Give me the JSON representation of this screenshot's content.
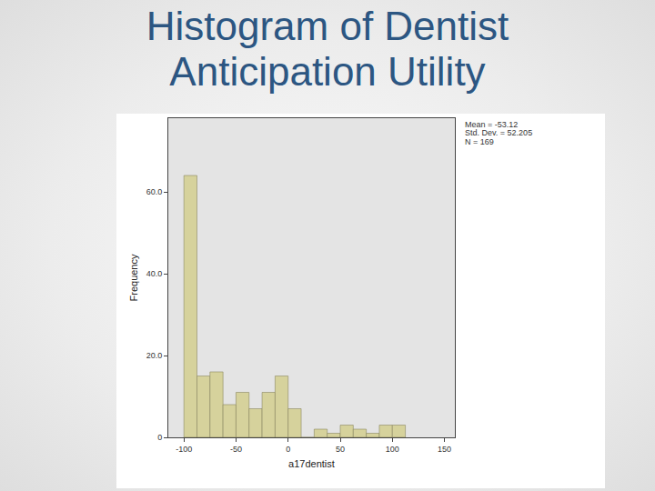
{
  "chart_data": {
    "type": "histogram",
    "title": "Histogram of Dentist Anticipation Utility",
    "x_label": "a17dentist",
    "y_label": "Frequency",
    "annotations": [
      "Mean = -53.12",
      "Std. Dev. = 52.205",
      "N = 169"
    ],
    "bins": [
      -100,
      -87.5,
      -75,
      -62.5,
      -50,
      -37.5,
      -25,
      -12.5,
      0,
      12.5,
      25,
      37.5,
      50,
      62.5,
      75,
      87.5,
      100,
      112.5
    ],
    "values": [
      64,
      15,
      16,
      8,
      11,
      7,
      11,
      15,
      7,
      0,
      2,
      1,
      3,
      2,
      1,
      3,
      3
    ],
    "color": "#d6d29c",
    "xlim": [
      -115,
      160
    ],
    "xticks": [
      -100,
      -50,
      0,
      50,
      100,
      150
    ],
    "ylim": [
      0,
      78
    ],
    "yticks": [
      0,
      {
        "value": 20,
        "label": "20.0"
      },
      {
        "value": 40,
        "label": "40.0"
      },
      {
        "value": 60,
        "label": "60.0"
      }
    ],
    "grid": false
  }
}
